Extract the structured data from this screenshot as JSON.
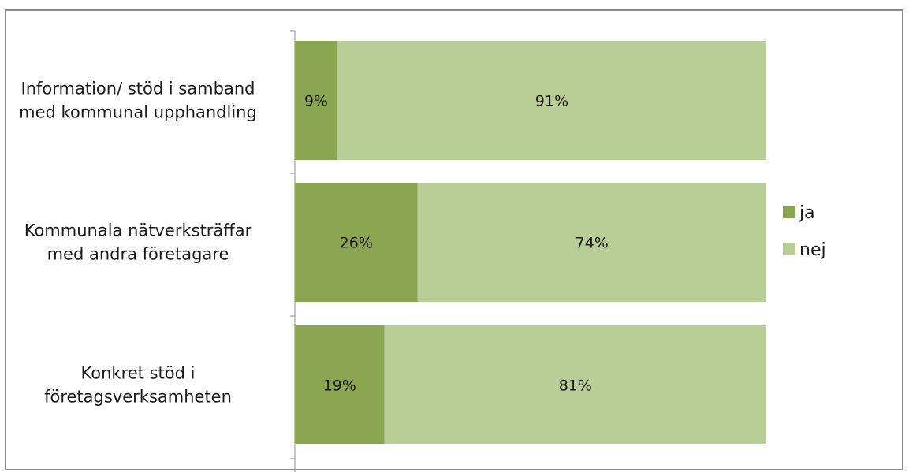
{
  "chart_data": {
    "type": "bar",
    "orientation": "horizontal",
    "stacking": "percent",
    "categories": [
      "Information/ stöd i samband\nmed kommunal upphandling",
      "Kommunala nätverksträffar\nmed andra företagare",
      "Konkret stöd i\nföretagsverksamheten"
    ],
    "series": [
      {
        "name": "ja",
        "color": "#8aa650",
        "values": [
          9,
          26,
          19
        ],
        "labels": [
          "9%",
          "26%",
          "19%"
        ]
      },
      {
        "name": "nej",
        "color": "#b9ce96",
        "values": [
          91,
          74,
          81
        ],
        "labels": [
          "91%",
          "74%",
          "81%"
        ]
      }
    ],
    "xlim": [
      0,
      100
    ],
    "grid": false,
    "legend_position": "right",
    "title": "",
    "xlabel": "",
    "ylabel": ""
  }
}
